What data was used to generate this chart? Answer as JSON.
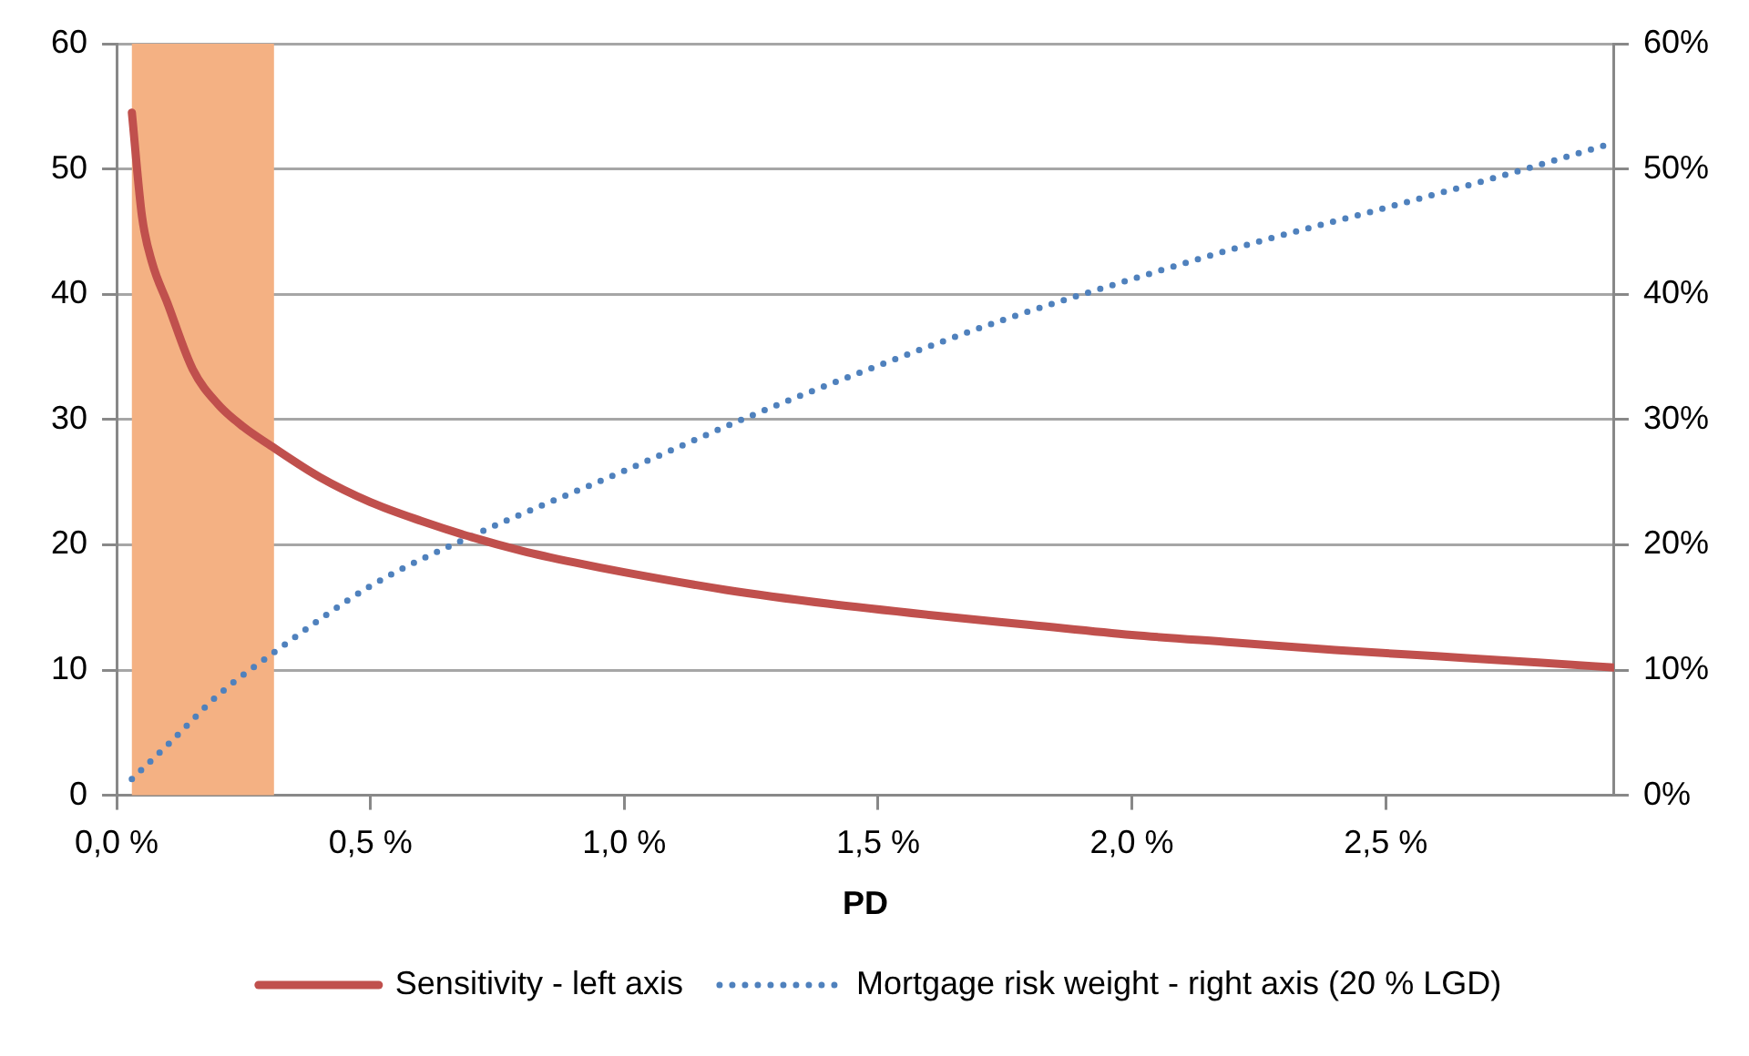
{
  "chart_data": {
    "type": "line",
    "xlabel": "PD",
    "xlim": [
      0,
      2.95
    ],
    "xticks": [
      {
        "value": 0,
        "label": "0,0 %"
      },
      {
        "value": 0.5,
        "label": "0,5 %"
      },
      {
        "value": 1,
        "label": "1,0 %"
      },
      {
        "value": 1.5,
        "label": "1,5 %"
      },
      {
        "value": 2,
        "label": "2,0 %"
      },
      {
        "value": 2.5,
        "label": "2,5 %"
      }
    ],
    "ylim": [
      0,
      60
    ],
    "yticks": [
      0,
      10,
      20,
      30,
      40,
      50,
      60
    ],
    "y2lim": [
      0,
      60
    ],
    "y2ticks": [
      {
        "value": 0,
        "label": "0%"
      },
      {
        "value": 10,
        "label": "10%"
      },
      {
        "value": 20,
        "label": "20%"
      },
      {
        "value": 30,
        "label": "30%"
      },
      {
        "value": 40,
        "label": "40%"
      },
      {
        "value": 50,
        "label": "50%"
      },
      {
        "value": 60,
        "label": "60%"
      }
    ],
    "grid": "y",
    "legend": "bottom",
    "marker": "none",
    "bands": [
      {
        "axis": "x",
        "from": 0.03,
        "to": 0.31,
        "color": "#f4b183"
      }
    ],
    "series": [
      {
        "name": "Sensitivity - left axis",
        "color": "#c0504d",
        "line_style": "solid",
        "x": [
          0.03,
          0.05,
          0.07,
          0.1,
          0.15,
          0.2,
          0.25,
          0.3,
          0.4,
          0.5,
          0.6,
          0.7,
          0.8,
          0.9,
          1.0,
          1.2,
          1.4,
          1.6,
          1.8,
          2.0,
          2.2,
          2.4,
          2.6,
          2.8,
          2.95
        ],
        "values": [
          54.5,
          46.2,
          42.5,
          39.3,
          34,
          31.2,
          29.4,
          28,
          25.4,
          23.4,
          21.9,
          20.6,
          19.5,
          18.6,
          17.8,
          16.4,
          15.3,
          14.4,
          13.6,
          12.8,
          12.2,
          11.6,
          11.1,
          10.6,
          10.2
        ]
      },
      {
        "name": "Mortgage risk weight - right axis (20 % LGD)",
        "color": "#4f81bd",
        "line_style": "dotted",
        "axis": "y2",
        "x": [
          0.03,
          0.1,
          0.2,
          0.31,
          0.5,
          0.7,
          1.0,
          1.25,
          1.5,
          1.75,
          2.0,
          2.25,
          2.5,
          2.75,
          2.95
        ],
        "values": [
          1.3,
          4,
          8,
          11.4,
          16.7,
          20.7,
          25.9,
          30.3,
          34.3,
          38,
          41.2,
          44.2,
          46.9,
          49.7,
          52.1
        ]
      }
    ]
  }
}
